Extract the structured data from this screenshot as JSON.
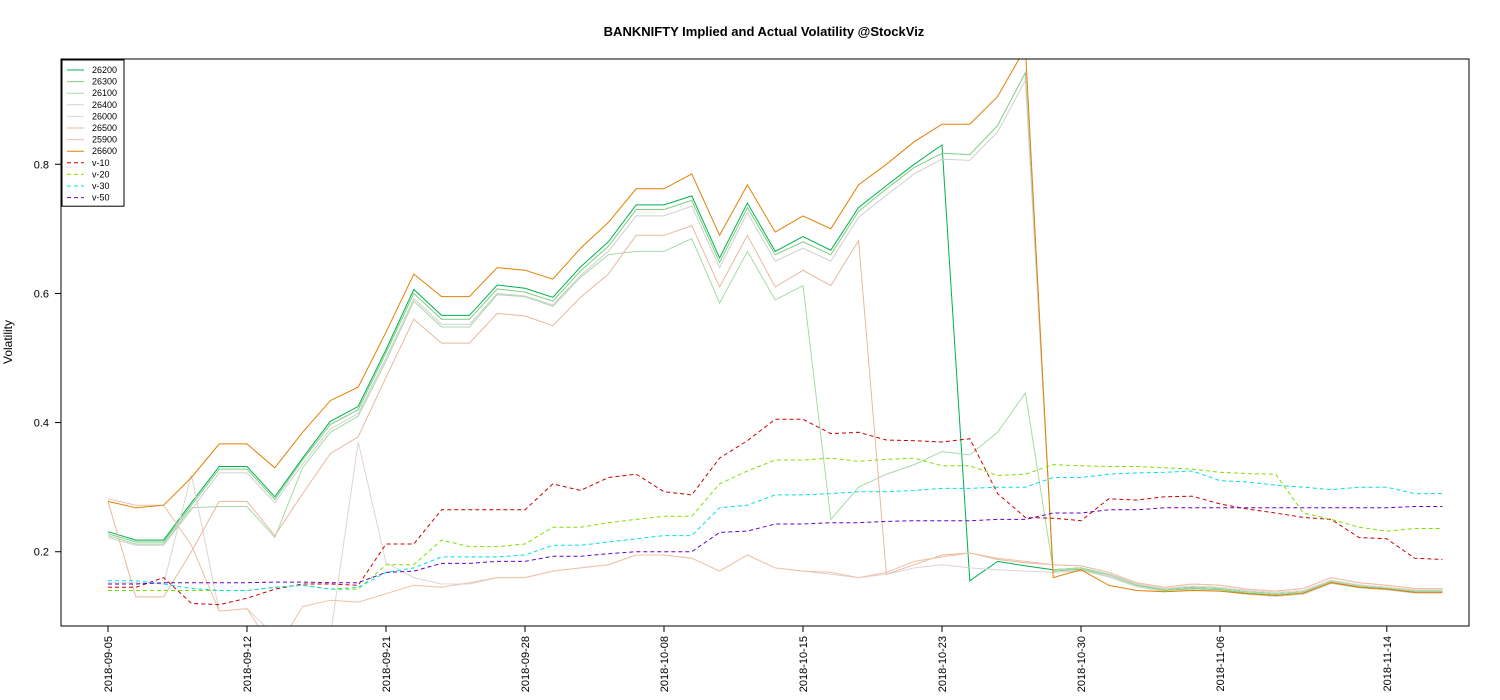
{
  "chart_data": {
    "type": "line",
    "title": "BANKNIFTY Implied and Actual Volatility @StockViz",
    "xlabel": "",
    "ylabel": "Volatility",
    "x_tick_labels": [
      "2018-09-05",
      "2018-09-12",
      "2018-09-21",
      "2018-09-28",
      "2018-10-08",
      "2018-10-15",
      "2018-10-23",
      "2018-10-30",
      "2018-11-06",
      "2018-11-14"
    ],
    "y_ticks": [
      0.2,
      0.4,
      0.6,
      0.8
    ],
    "y_tick_labels": [
      "0.2",
      "0.4",
      "0.6",
      "0.8"
    ],
    "ylim": [
      0.085,
      0.963
    ],
    "x_points": 49,
    "x_tick_index": [
      0,
      5,
      10,
      15,
      20,
      25,
      30,
      35,
      40,
      46
    ],
    "legend_position": "top-left",
    "grid": false,
    "series": [
      {
        "name": "26200",
        "color": "#00b050",
        "dash": "solid",
        "values": [
          0.231,
          0.218,
          0.218,
          0.276,
          0.332,
          0.332,
          0.285,
          0.345,
          0.402,
          0.425,
          0.513,
          0.606,
          0.566,
          0.566,
          0.613,
          0.608,
          0.594,
          0.641,
          0.68,
          0.737,
          0.737,
          0.751,
          0.655,
          0.74,
          0.665,
          0.688,
          0.667,
          0.733,
          0.767,
          0.8,
          0.83,
          0.155,
          0.185,
          0.178,
          0.172,
          0.175,
          0.165,
          0.15,
          0.142,
          0.145,
          0.143,
          0.138,
          0.135,
          0.138,
          0.155,
          0.148,
          0.145,
          0.14,
          0.14
        ]
      },
      {
        "name": "26300",
        "color": "#7fcf7f",
        "dash": "solid",
        "values": [
          0.228,
          0.215,
          0.215,
          0.272,
          0.328,
          0.328,
          0.281,
          0.342,
          0.397,
          0.42,
          0.508,
          0.6,
          0.56,
          0.56,
          0.607,
          0.602,
          0.588,
          0.635,
          0.673,
          0.73,
          0.73,
          0.744,
          0.648,
          0.733,
          0.66,
          0.68,
          0.66,
          0.727,
          0.762,
          0.795,
          0.817,
          0.815,
          0.86,
          0.942,
          0.17,
          0.173,
          0.163,
          0.148,
          0.14,
          0.143,
          0.141,
          0.136,
          0.133,
          0.136,
          0.153,
          0.146,
          0.143,
          0.138,
          0.138
        ]
      },
      {
        "name": "26100",
        "color": "#a8d9a8",
        "dash": "solid",
        "values": [
          0.225,
          0.212,
          0.212,
          0.268,
          0.27,
          0.27,
          0.222,
          0.33,
          0.385,
          0.41,
          0.495,
          0.588,
          0.548,
          0.548,
          0.598,
          0.595,
          0.58,
          0.625,
          0.66,
          0.665,
          0.665,
          0.685,
          0.585,
          0.665,
          0.59,
          0.612,
          0.25,
          0.3,
          0.32,
          0.335,
          0.355,
          0.35,
          0.385,
          0.446,
          0.172,
          0.175,
          0.165,
          0.15,
          0.142,
          0.145,
          0.143,
          0.138,
          0.135,
          0.138,
          0.155,
          0.148,
          0.145,
          0.14,
          0.14
        ]
      },
      {
        "name": "26400",
        "color": "#d0d0d0",
        "dash": "solid",
        "values": [
          0.222,
          0.21,
          0.21,
          0.265,
          0.322,
          0.322,
          0.276,
          0.336,
          0.39,
          0.414,
          0.5,
          0.592,
          0.552,
          0.552,
          0.6,
          0.596,
          0.582,
          0.628,
          0.665,
          0.72,
          0.72,
          0.735,
          0.64,
          0.725,
          0.65,
          0.67,
          0.65,
          0.718,
          0.752,
          0.785,
          0.808,
          0.806,
          0.85,
          0.93,
          0.168,
          0.171,
          0.161,
          0.146,
          0.138,
          0.141,
          0.139,
          0.134,
          0.131,
          0.134,
          0.151,
          0.144,
          0.141,
          0.136,
          0.136
        ]
      },
      {
        "name": "26000",
        "color": "#e0d4d0",
        "dash": "solid",
        "values": [
          0.152,
          0.152,
          0.15,
          0.319,
          0.108,
          0.112,
          0.07,
          0.07,
          0.07,
          0.37,
          0.183,
          0.16,
          0.15,
          0.15,
          0.16,
          0.16,
          0.17,
          0.175,
          0.18,
          0.195,
          0.195,
          0.19,
          0.17,
          0.195,
          0.175,
          0.17,
          0.165,
          0.16,
          0.165,
          0.175,
          0.18,
          0.175,
          0.172,
          0.17,
          0.168,
          0.17,
          0.163,
          0.15,
          0.143,
          0.147,
          0.145,
          0.14,
          0.137,
          0.14,
          0.156,
          0.149,
          0.145,
          0.141,
          0.141
        ]
      },
      {
        "name": "26500",
        "color": "#e8b8a0",
        "dash": "solid",
        "values": [
          0.278,
          0.13,
          0.13,
          0.2,
          0.278,
          0.278,
          0.225,
          0.29,
          0.352,
          0.378,
          0.47,
          0.56,
          0.523,
          0.523,
          0.569,
          0.565,
          0.55,
          0.594,
          0.63,
          0.69,
          0.69,
          0.705,
          0.61,
          0.69,
          0.61,
          0.636,
          0.612,
          0.682,
          0.165,
          0.18,
          0.195,
          0.198,
          0.188,
          0.183,
          0.18,
          0.178,
          0.168,
          0.152,
          0.145,
          0.15,
          0.148,
          0.142,
          0.139,
          0.143,
          0.16,
          0.152,
          0.148,
          0.143,
          0.143
        ]
      },
      {
        "name": "25900",
        "color": "#f0c0a8",
        "dash": "solid",
        "values": [
          0.282,
          0.272,
          0.272,
          0.21,
          0.108,
          0.112,
          0.045,
          0.115,
          0.125,
          0.122,
          0.135,
          0.148,
          0.145,
          0.152,
          0.16,
          0.16,
          0.17,
          0.175,
          0.18,
          0.195,
          0.195,
          0.19,
          0.17,
          0.195,
          0.175,
          0.17,
          0.168,
          0.16,
          0.168,
          0.185,
          0.192,
          0.198,
          0.19,
          0.185,
          0.18,
          0.178,
          0.168,
          0.152,
          0.145,
          0.15,
          0.148,
          0.142,
          0.139,
          0.143,
          0.16,
          0.152,
          0.148,
          0.143,
          0.143
        ]
      },
      {
        "name": "26600",
        "color": "#e08000",
        "dash": "solid",
        "values": [
          0.278,
          0.268,
          0.272,
          0.315,
          0.367,
          0.367,
          0.33,
          0.385,
          0.434,
          0.455,
          0.54,
          0.63,
          0.595,
          0.595,
          0.64,
          0.636,
          0.622,
          0.67,
          0.71,
          0.762,
          0.762,
          0.785,
          0.69,
          0.768,
          0.695,
          0.72,
          0.7,
          0.768,
          0.8,
          0.835,
          0.862,
          0.862,
          0.905,
          0.98,
          0.16,
          0.172,
          0.148,
          0.14,
          0.138,
          0.14,
          0.139,
          0.135,
          0.132,
          0.136,
          0.152,
          0.145,
          0.142,
          0.137,
          0.137
        ]
      },
      {
        "name": "v-10",
        "color": "#cc0000",
        "dash": "4,3",
        "values": [
          0.145,
          0.145,
          0.16,
          0.12,
          0.118,
          0.128,
          0.142,
          0.15,
          0.15,
          0.148,
          0.212,
          0.212,
          0.265,
          0.265,
          0.265,
          0.265,
          0.305,
          0.295,
          0.315,
          0.32,
          0.293,
          0.288,
          0.345,
          0.372,
          0.405,
          0.405,
          0.383,
          0.385,
          0.373,
          0.372,
          0.37,
          0.375,
          0.29,
          0.253,
          0.252,
          0.248,
          0.282,
          0.28,
          0.285,
          0.286,
          0.274,
          0.266,
          0.26,
          0.253,
          0.25,
          0.222,
          0.22,
          0.19,
          0.188
        ]
      },
      {
        "name": "v-20",
        "color": "#80e000",
        "dash": "4,3",
        "values": [
          0.14,
          0.14,
          0.14,
          0.14,
          0.14,
          0.14,
          0.145,
          0.148,
          0.142,
          0.142,
          0.18,
          0.18,
          0.218,
          0.208,
          0.208,
          0.212,
          0.238,
          0.238,
          0.245,
          0.25,
          0.255,
          0.255,
          0.305,
          0.325,
          0.342,
          0.342,
          0.345,
          0.34,
          0.343,
          0.345,
          0.333,
          0.333,
          0.318,
          0.32,
          0.335,
          0.333,
          0.332,
          0.332,
          0.33,
          0.328,
          0.323,
          0.321,
          0.32,
          0.26,
          0.25,
          0.238,
          0.232,
          0.236,
          0.236
        ]
      },
      {
        "name": "v-30",
        "color": "#00e0e0",
        "dash": "4,3",
        "values": [
          0.155,
          0.155,
          0.15,
          0.143,
          0.14,
          0.14,
          0.145,
          0.148,
          0.142,
          0.145,
          0.168,
          0.175,
          0.192,
          0.192,
          0.192,
          0.195,
          0.21,
          0.21,
          0.215,
          0.22,
          0.225,
          0.225,
          0.268,
          0.272,
          0.288,
          0.288,
          0.29,
          0.293,
          0.293,
          0.295,
          0.298,
          0.298,
          0.3,
          0.3,
          0.315,
          0.315,
          0.32,
          0.322,
          0.323,
          0.325,
          0.31,
          0.308,
          0.303,
          0.3,
          0.296,
          0.3,
          0.3,
          0.29,
          0.29
        ]
      },
      {
        "name": "v-50",
        "color": "#6600cc",
        "dash": "4,3",
        "values": [
          0.15,
          0.15,
          0.152,
          0.152,
          0.152,
          0.152,
          0.153,
          0.153,
          0.152,
          0.152,
          0.168,
          0.17,
          0.182,
          0.182,
          0.185,
          0.185,
          0.193,
          0.193,
          0.197,
          0.2,
          0.2,
          0.2,
          0.23,
          0.232,
          0.243,
          0.243,
          0.245,
          0.245,
          0.247,
          0.248,
          0.248,
          0.248,
          0.25,
          0.25,
          0.26,
          0.26,
          0.265,
          0.265,
          0.268,
          0.268,
          0.268,
          0.268,
          0.268,
          0.268,
          0.268,
          0.268,
          0.268,
          0.27,
          0.27
        ]
      }
    ]
  }
}
